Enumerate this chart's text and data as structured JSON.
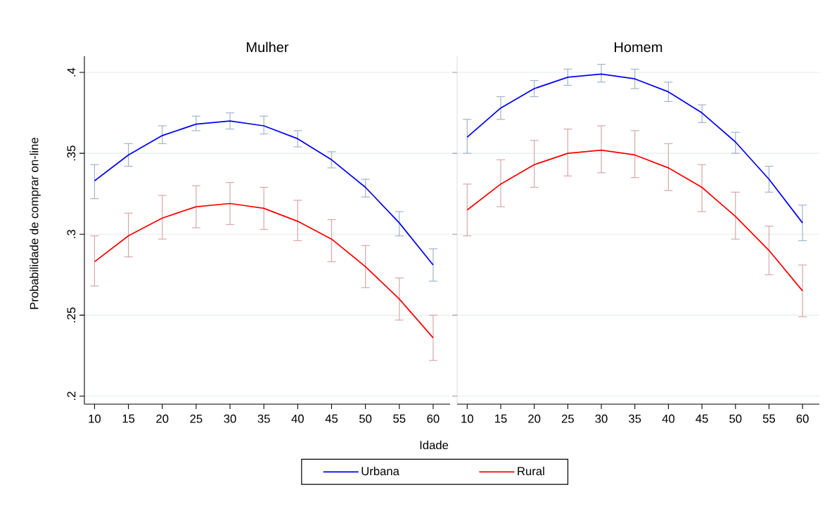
{
  "chart_data": [
    {
      "type": "line",
      "title": "Mulher",
      "xlabel": "Idade",
      "ylabel": "Probabilidade de comprar on-line",
      "x": [
        10,
        15,
        20,
        25,
        30,
        35,
        40,
        45,
        50,
        55,
        60
      ],
      "xlim": [
        8.5,
        62.5
      ],
      "xticks": [
        10,
        15,
        20,
        25,
        30,
        35,
        40,
        45,
        50,
        55,
        60
      ],
      "ylim": [
        0.195,
        0.41
      ],
      "yticks": [
        {
          "value": 0.2,
          "label": ".2"
        },
        {
          "value": 0.25,
          "label": ".25"
        },
        {
          "value": 0.3,
          "label": ".3"
        },
        {
          "value": 0.35,
          "label": ".35"
        },
        {
          "value": 0.4,
          "label": ".4"
        }
      ],
      "grid": "y",
      "legend": "bottom",
      "series": [
        {
          "name": "Urbana",
          "color": "#0000ff",
          "values": [
            0.333,
            0.349,
            0.361,
            0.368,
            0.37,
            0.367,
            0.359,
            0.346,
            0.329,
            0.307,
            0.281
          ],
          "errors": [
            [
              0.322,
              0.343
            ],
            [
              0.342,
              0.356
            ],
            [
              0.356,
              0.367
            ],
            [
              0.364,
              0.373
            ],
            [
              0.365,
              0.375
            ],
            [
              0.362,
              0.373
            ],
            [
              0.354,
              0.364
            ],
            [
              0.341,
              0.351
            ],
            [
              0.323,
              0.334
            ],
            [
              0.299,
              0.314
            ],
            [
              0.271,
              0.291
            ]
          ]
        },
        {
          "name": "Rural",
          "color": "#ff0000",
          "values": [
            0.283,
            0.299,
            0.31,
            0.317,
            0.319,
            0.316,
            0.308,
            0.297,
            0.28,
            0.26,
            0.236
          ],
          "errors": [
            [
              0.268,
              0.299
            ],
            [
              0.286,
              0.313
            ],
            [
              0.297,
              0.324
            ],
            [
              0.304,
              0.33
            ],
            [
              0.306,
              0.332
            ],
            [
              0.303,
              0.329
            ],
            [
              0.296,
              0.321
            ],
            [
              0.283,
              0.309
            ],
            [
              0.267,
              0.293
            ],
            [
              0.247,
              0.273
            ],
            [
              0.222,
              0.25
            ]
          ]
        }
      ]
    },
    {
      "type": "line",
      "title": "Homem",
      "x": [
        10,
        15,
        20,
        25,
        30,
        35,
        40,
        45,
        50,
        55,
        60
      ],
      "xlim": [
        8.5,
        62.5
      ],
      "xticks": [
        10,
        15,
        20,
        25,
        30,
        35,
        40,
        45,
        50,
        55,
        60
      ],
      "ylim": [
        0.195,
        0.41
      ],
      "yticks": [
        {
          "value": 0.2,
          "label": null
        },
        {
          "value": 0.25,
          "label": null
        },
        {
          "value": 0.3,
          "label": null
        },
        {
          "value": 0.35,
          "label": null
        },
        {
          "value": 0.4,
          "label": null
        }
      ],
      "grid": "y",
      "tick_labels": "x",
      "series": [
        {
          "color": "#0000ff",
          "values": [
            0.36,
            0.378,
            0.39,
            0.397,
            0.399,
            0.396,
            0.388,
            0.375,
            0.357,
            0.334,
            0.307
          ],
          "errors": [
            [
              0.35,
              0.371
            ],
            [
              0.371,
              0.385
            ],
            [
              0.385,
              0.395
            ],
            [
              0.392,
              0.402
            ],
            [
              0.394,
              0.405
            ],
            [
              0.39,
              0.402
            ],
            [
              0.382,
              0.394
            ],
            [
              0.369,
              0.38
            ],
            [
              0.35,
              0.363
            ],
            [
              0.326,
              0.342
            ],
            [
              0.296,
              0.318
            ]
          ]
        },
        {
          "color": "#ff0000",
          "values": [
            0.315,
            0.331,
            0.343,
            0.35,
            0.352,
            0.349,
            0.341,
            0.329,
            0.311,
            0.29,
            0.265
          ],
          "errors": [
            [
              0.299,
              0.331
            ],
            [
              0.317,
              0.346
            ],
            [
              0.329,
              0.358
            ],
            [
              0.336,
              0.365
            ],
            [
              0.338,
              0.367
            ],
            [
              0.335,
              0.364
            ],
            [
              0.327,
              0.356
            ],
            [
              0.314,
              0.343
            ],
            [
              0.297,
              0.326
            ],
            [
              0.275,
              0.305
            ],
            [
              0.249,
              0.281
            ]
          ]
        }
      ]
    }
  ]
}
